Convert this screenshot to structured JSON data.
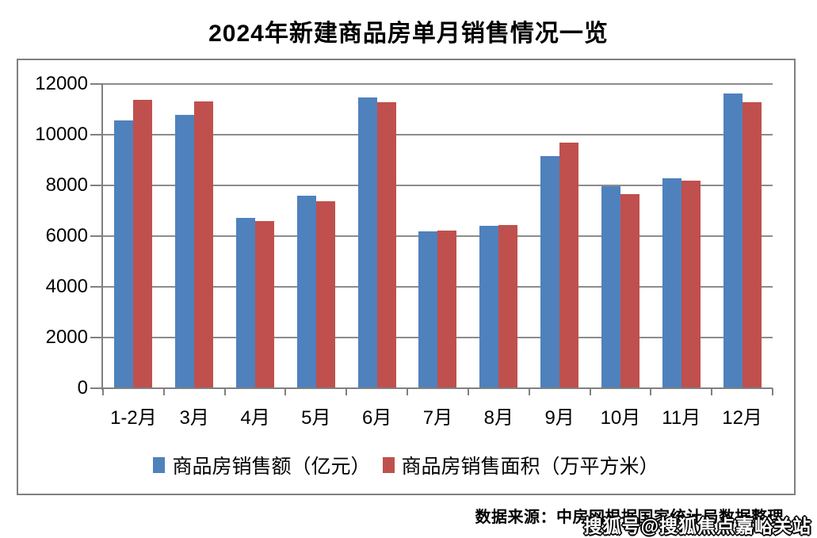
{
  "title": "2024年新建商品房单月销售情况一览",
  "chart_data": {
    "type": "bar",
    "title": "2024年新建商品房单月销售情况一览",
    "categories": [
      "1-2月",
      "3月",
      "4月",
      "5月",
      "6月",
      "7月",
      "8月",
      "9月",
      "10月",
      "11月",
      "12月"
    ],
    "series": [
      {
        "name": "商品房销售额（亿元）",
        "color": "#4F81BD",
        "values": [
          10566,
          10789,
          6712,
          7598,
          11468,
          6197,
          6393,
          9157,
          7975,
          8270,
          11625
        ]
      },
      {
        "name": "商品房销售面积（万平方米）",
        "color": "#C0504D",
        "values": [
          11369,
          11299,
          6584,
          7390,
          11274,
          6233,
          6453,
          9682,
          7646,
          8188,
          11267
        ]
      }
    ],
    "xlabel": "",
    "ylabel": "",
    "ylim": [
      0,
      12000
    ],
    "yticks": [
      0,
      2000,
      4000,
      6000,
      8000,
      10000,
      12000
    ],
    "grid": true,
    "legend_position": "bottom-inside"
  },
  "colors": {
    "bar_blue": "#4F81BD",
    "bar_red": "#C0504D",
    "gridline": "#8C8C8C",
    "axis": "#808080",
    "border": "#808080",
    "text": "#000000",
    "background": "#FFFFFF",
    "watermark_fill": "#FFFFFF",
    "watermark_outline": "#000000"
  },
  "footer": {
    "source_text": "数据来源：中房网根据国家统计局数据整理",
    "watermark_text": "搜狐号@搜狐焦点嘉峪关站"
  }
}
